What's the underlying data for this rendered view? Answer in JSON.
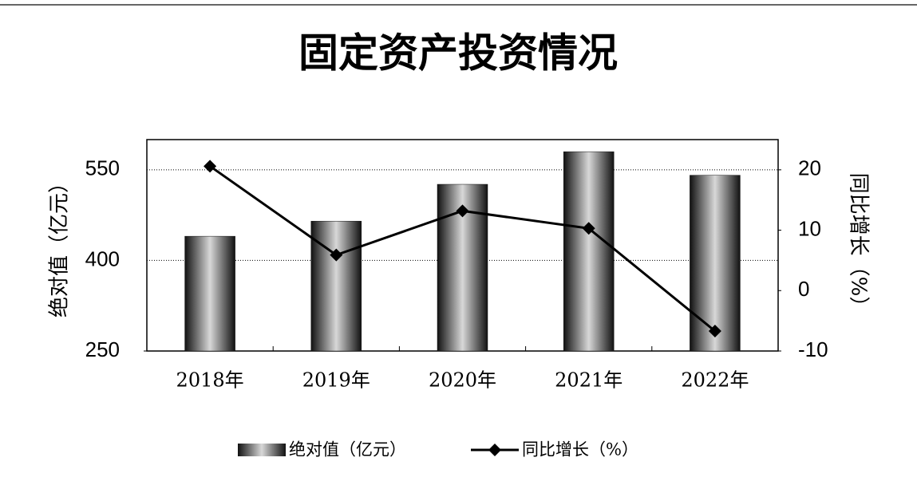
{
  "chart_data": {
    "type": "bar-line",
    "title": "固定资产投资情况",
    "categories": [
      "2018年",
      "2019年",
      "2020年",
      "2021年",
      "2022年"
    ],
    "y_label": "绝对值（亿元）",
    "y2_label": "同比增长（%）",
    "series": [
      {
        "name": "绝对值（亿元）",
        "type": "bar",
        "color": "#111111",
        "values": [
          440,
          465,
          526,
          580,
          541
        ]
      },
      {
        "name": "同比增长（%）",
        "type": "line",
        "axis": "y2",
        "color": "#000000",
        "values": [
          20.6,
          5.9,
          13.2,
          10.3,
          -6.7
        ]
      }
    ],
    "ylim": [
      250,
      600
    ],
    "yticks": [
      250,
      400,
      550
    ],
    "y2lim": [
      -10,
      25
    ],
    "y2ticks": [
      -10,
      0,
      10,
      20
    ],
    "grid": true,
    "legend": "bottom"
  }
}
